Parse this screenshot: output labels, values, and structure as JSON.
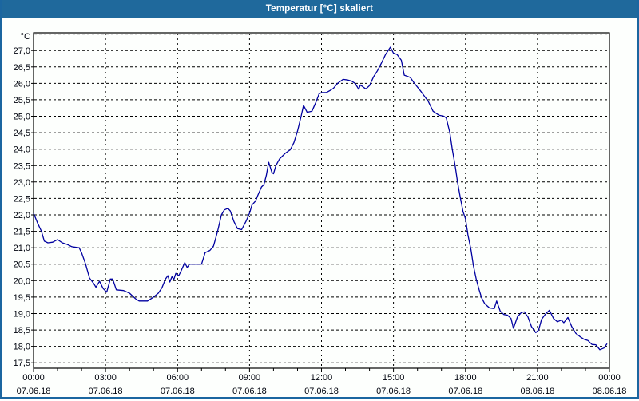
{
  "window": {
    "title": "Temperatur [°C] skaliert",
    "titlebar_color": "#1f699c",
    "border_color": "#1b66a0"
  },
  "chart_data": {
    "type": "line",
    "title": "Temperatur [°C] skaliert",
    "ylabel": "°C",
    "line_color": "#0000a0",
    "grid_color": "#000000",
    "grid_on": true,
    "legend": "none",
    "ylim": [
      17.35,
      27.55
    ],
    "xlim_hours": [
      0,
      24
    ],
    "y_grid_values": [
      27.5,
      27.0,
      26.5,
      26.0,
      25.5,
      25.0,
      24.5,
      24.0,
      23.5,
      23.0,
      22.5,
      22.0,
      21.5,
      21.0,
      20.5,
      20.0,
      19.5,
      19.0,
      18.5,
      18.0,
      17.5
    ],
    "y_ticks": [
      {
        "v": 27.0,
        "label": "27,0"
      },
      {
        "v": 26.5,
        "label": "26,5"
      },
      {
        "v": 26.0,
        "label": "26,0"
      },
      {
        "v": 25.5,
        "label": "25,5"
      },
      {
        "v": 25.0,
        "label": "25,0"
      },
      {
        "v": 24.5,
        "label": "24,5"
      },
      {
        "v": 24.0,
        "label": "24,0"
      },
      {
        "v": 23.5,
        "label": "23,5"
      },
      {
        "v": 23.0,
        "label": "23,0"
      },
      {
        "v": 22.5,
        "label": "22,5"
      },
      {
        "v": 22.0,
        "label": "22,0"
      },
      {
        "v": 21.5,
        "label": "21,5"
      },
      {
        "v": 21.0,
        "label": "21,0"
      },
      {
        "v": 20.5,
        "label": "20,5"
      },
      {
        "v": 20.0,
        "label": "20,0"
      },
      {
        "v": 19.5,
        "label": "19,5"
      },
      {
        "v": 19.0,
        "label": "19,0"
      },
      {
        "v": 18.5,
        "label": "18,5"
      },
      {
        "v": 18.0,
        "label": "18,0"
      },
      {
        "v": 17.5,
        "label": "17,5"
      }
    ],
    "x_ticks": [
      {
        "hour": 0,
        "time": "00:00",
        "date": "07.06.18"
      },
      {
        "hour": 3,
        "time": "03:00",
        "date": "07.06.18"
      },
      {
        "hour": 6,
        "time": "06:00",
        "date": "07.06.18"
      },
      {
        "hour": 9,
        "time": "09:00",
        "date": "07.06.18"
      },
      {
        "hour": 12,
        "time": "12:00",
        "date": "07.06.18"
      },
      {
        "hour": 15,
        "time": "15:00",
        "date": "07.06.18"
      },
      {
        "hour": 18,
        "time": "18:00",
        "date": "07.06.18"
      },
      {
        "hour": 21,
        "time": "21:00",
        "date": "08.06.18"
      },
      {
        "hour": 24,
        "time": "00:00",
        "date": "08.06.18"
      }
    ],
    "x_gridline_hours": [
      3,
      6,
      9,
      12,
      15,
      18,
      21
    ],
    "minor_tick_every_hours": 1,
    "series": [
      {
        "name": "Temperatur",
        "points": [
          [
            0,
            22.05
          ],
          [
            0.17,
            21.75
          ],
          [
            0.33,
            21.5
          ],
          [
            0.45,
            21.2
          ],
          [
            0.6,
            21.15
          ],
          [
            0.8,
            21.17
          ],
          [
            1.0,
            21.25
          ],
          [
            1.2,
            21.15
          ],
          [
            1.4,
            21.1
          ],
          [
            1.6,
            21.03
          ],
          [
            1.9,
            21.0
          ],
          [
            2.0,
            20.85
          ],
          [
            2.17,
            20.5
          ],
          [
            2.33,
            20.08
          ],
          [
            2.5,
            19.92
          ],
          [
            2.6,
            19.8
          ],
          [
            2.75,
            19.98
          ],
          [
            2.9,
            19.76
          ],
          [
            3.05,
            19.65
          ],
          [
            3.2,
            20.05
          ],
          [
            3.3,
            20.05
          ],
          [
            3.45,
            19.72
          ],
          [
            3.75,
            19.7
          ],
          [
            4.0,
            19.62
          ],
          [
            4.25,
            19.45
          ],
          [
            4.4,
            19.38
          ],
          [
            4.75,
            19.38
          ],
          [
            5.0,
            19.5
          ],
          [
            5.2,
            19.62
          ],
          [
            5.35,
            19.78
          ],
          [
            5.5,
            20.05
          ],
          [
            5.6,
            20.15
          ],
          [
            5.68,
            19.96
          ],
          [
            5.77,
            20.12
          ],
          [
            5.85,
            20.04
          ],
          [
            5.93,
            20.22
          ],
          [
            6.05,
            20.15
          ],
          [
            6.15,
            20.3
          ],
          [
            6.3,
            20.55
          ],
          [
            6.4,
            20.4
          ],
          [
            6.5,
            20.5
          ],
          [
            6.8,
            20.5
          ],
          [
            7.0,
            20.5
          ],
          [
            7.15,
            20.85
          ],
          [
            7.35,
            20.92
          ],
          [
            7.5,
            21.05
          ],
          [
            7.67,
            21.5
          ],
          [
            7.83,
            22.0
          ],
          [
            7.95,
            22.15
          ],
          [
            8.1,
            22.2
          ],
          [
            8.2,
            22.12
          ],
          [
            8.35,
            21.8
          ],
          [
            8.5,
            21.58
          ],
          [
            8.67,
            21.55
          ],
          [
            8.85,
            21.8
          ],
          [
            9.0,
            22.05
          ],
          [
            9.1,
            22.3
          ],
          [
            9.25,
            22.42
          ],
          [
            9.35,
            22.6
          ],
          [
            9.5,
            22.85
          ],
          [
            9.6,
            22.92
          ],
          [
            9.7,
            23.2
          ],
          [
            9.8,
            23.6
          ],
          [
            9.93,
            23.3
          ],
          [
            10.0,
            23.25
          ],
          [
            10.1,
            23.5
          ],
          [
            10.25,
            23.7
          ],
          [
            10.5,
            23.88
          ],
          [
            10.7,
            23.98
          ],
          [
            10.85,
            24.2
          ],
          [
            11.0,
            24.55
          ],
          [
            11.15,
            25.0
          ],
          [
            11.25,
            25.33
          ],
          [
            11.4,
            25.12
          ],
          [
            11.6,
            25.15
          ],
          [
            11.77,
            25.43
          ],
          [
            11.9,
            25.68
          ],
          [
            12.0,
            25.72
          ],
          [
            12.2,
            25.72
          ],
          [
            12.35,
            25.78
          ],
          [
            12.5,
            25.85
          ],
          [
            12.67,
            26.0
          ],
          [
            12.9,
            26.12
          ],
          [
            13.1,
            26.1
          ],
          [
            13.25,
            26.07
          ],
          [
            13.4,
            26.0
          ],
          [
            13.55,
            25.82
          ],
          [
            13.62,
            25.95
          ],
          [
            13.75,
            25.88
          ],
          [
            13.85,
            25.83
          ],
          [
            14.0,
            25.93
          ],
          [
            14.17,
            26.2
          ],
          [
            14.33,
            26.38
          ],
          [
            14.5,
            26.62
          ],
          [
            14.67,
            26.88
          ],
          [
            14.87,
            27.1
          ],
          [
            15.0,
            26.92
          ],
          [
            15.15,
            26.88
          ],
          [
            15.33,
            26.7
          ],
          [
            15.45,
            26.25
          ],
          [
            15.7,
            26.18
          ],
          [
            15.85,
            26.02
          ],
          [
            16.15,
            25.75
          ],
          [
            16.45,
            25.45
          ],
          [
            16.65,
            25.15
          ],
          [
            16.9,
            25.03
          ],
          [
            17.1,
            25.0
          ],
          [
            17.2,
            24.95
          ],
          [
            17.35,
            24.5
          ],
          [
            17.45,
            24.0
          ],
          [
            17.57,
            23.5
          ],
          [
            17.67,
            23.0
          ],
          [
            17.78,
            22.55
          ],
          [
            17.9,
            22.1
          ],
          [
            18.0,
            21.88
          ],
          [
            18.1,
            21.4
          ],
          [
            18.23,
            20.93
          ],
          [
            18.33,
            20.45
          ],
          [
            18.45,
            20.04
          ],
          [
            18.57,
            19.72
          ],
          [
            18.67,
            19.48
          ],
          [
            18.8,
            19.3
          ],
          [
            19.0,
            19.17
          ],
          [
            19.2,
            19.15
          ],
          [
            19.3,
            19.38
          ],
          [
            19.45,
            19.07
          ],
          [
            19.6,
            18.97
          ],
          [
            19.75,
            18.95
          ],
          [
            19.9,
            18.85
          ],
          [
            20.0,
            18.55
          ],
          [
            20.17,
            18.9
          ],
          [
            20.33,
            19.03
          ],
          [
            20.45,
            19.05
          ],
          [
            20.6,
            18.9
          ],
          [
            20.75,
            18.6
          ],
          [
            20.93,
            18.42
          ],
          [
            21.05,
            18.5
          ],
          [
            21.17,
            18.82
          ],
          [
            21.33,
            18.98
          ],
          [
            21.5,
            19.1
          ],
          [
            21.67,
            18.85
          ],
          [
            21.83,
            18.75
          ],
          [
            22.0,
            18.8
          ],
          [
            22.1,
            18.72
          ],
          [
            22.27,
            18.88
          ],
          [
            22.43,
            18.6
          ],
          [
            22.6,
            18.4
          ],
          [
            22.77,
            18.3
          ],
          [
            22.93,
            18.22
          ],
          [
            23.1,
            18.18
          ],
          [
            23.27,
            18.06
          ],
          [
            23.43,
            18.05
          ],
          [
            23.6,
            17.9
          ],
          [
            23.77,
            17.95
          ],
          [
            23.9,
            18.08
          ]
        ]
      }
    ]
  }
}
